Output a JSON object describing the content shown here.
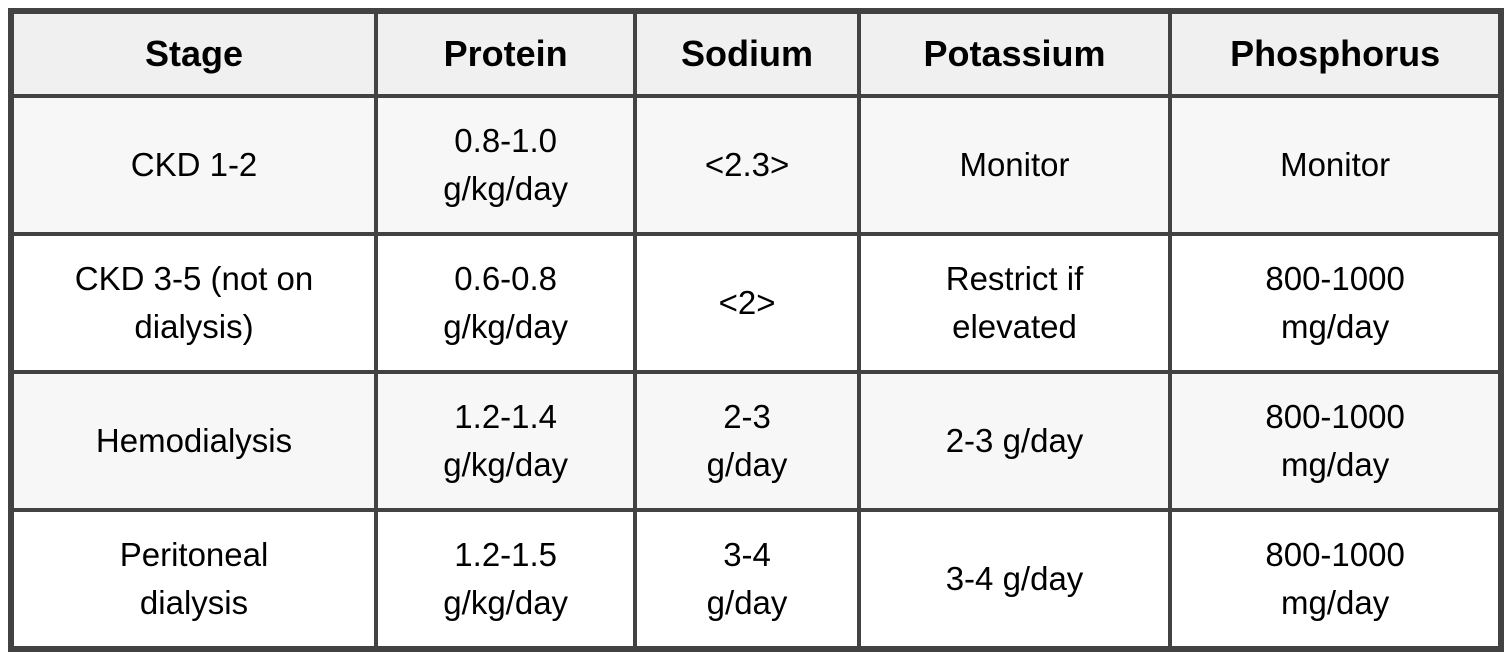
{
  "chart_data": {
    "type": "table",
    "title": "",
    "columns": [
      "Stage",
      "Protein",
      "Sodium",
      "Potassium",
      "Phosphorus"
    ],
    "rows": [
      [
        "CKD 1-2",
        "0.8-1.0 g/kg/day",
        "<2.3>",
        "Monitor",
        "Monitor"
      ],
      [
        "CKD 3-5 (not on dialysis)",
        "0.6-0.8 g/kg/day",
        "<2>",
        "Restrict if elevated",
        "800-1000 mg/day"
      ],
      [
        "Hemodialysis",
        "1.2-1.4 g/kg/day",
        "2-3 g/day",
        "2-3 g/day",
        "800-1000 mg/day"
      ],
      [
        "Peritoneal dialysis",
        "1.2-1.5 g/kg/day",
        "3-4 g/day",
        "3-4 g/day",
        "800-1000 mg/day"
      ]
    ]
  },
  "table": {
    "headers": [
      "Stage",
      "Protein",
      "Sodium",
      "Potassium",
      "Phosphorus"
    ],
    "rows": [
      [
        "CKD 1-2",
        "0.8-1.0\ng/kg/day",
        "<2.3>",
        "Monitor",
        "Monitor"
      ],
      [
        "CKD 3-5 (not on\ndialysis)",
        "0.6-0.8\ng/kg/day",
        "<2>",
        "Restrict if\nelevated",
        "800-1000\nmg/day"
      ],
      [
        "Hemodialysis",
        "1.2-1.4\ng/kg/day",
        "2-3\ng/day",
        "2-3 g/day",
        "800-1000\nmg/day"
      ],
      [
        "Peritoneal\ndialysis",
        "1.2-1.5\ng/kg/day",
        "3-4\ng/day",
        "3-4 g/day",
        "800-1000\nmg/day"
      ]
    ]
  },
  "colors": {
    "border": "#424242",
    "header_bg": "#f0f0f0",
    "row_stripe_bg": "#f7f7f7",
    "cell_bg": "#ffffff",
    "text": "#000000",
    "page_bg": "#ffffff"
  }
}
